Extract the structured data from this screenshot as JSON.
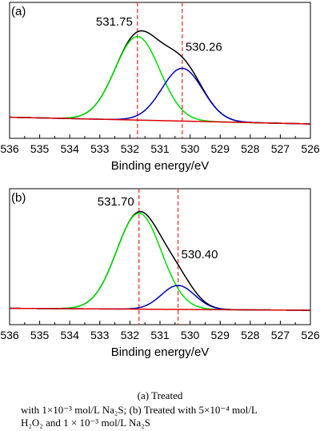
{
  "figure_caption": {
    "title": "(a) Treated",
    "line1": "with 1×10⁻³ mol/L Na₂S; (b) Treated with 5×10⁻⁴ mol/L",
    "line2": "H₂O₂ and 1 × 10⁻³ mol/L Na₂S"
  },
  "colors": {
    "envelope": "#000000",
    "peak_high": "#00dd00",
    "peak_low": "#0000bb",
    "background": "#dd0000",
    "reference_line": "#ee3333"
  },
  "chart_data": [
    {
      "type": "line",
      "panel_label": "(a)",
      "xlabel": "Binding energy/eV",
      "ylabel": "",
      "xlim": [
        536,
        526
      ],
      "x_reversed": true,
      "x_ticks": [
        536,
        535,
        534,
        533,
        532,
        531,
        530,
        529,
        528,
        527,
        526
      ],
      "reference_lines": [
        531.75,
        530.26
      ],
      "annotations": [
        {
          "text": "531.75",
          "x": 531.75
        },
        {
          "text": "530.26",
          "x": 530.26
        }
      ],
      "ylim": [
        0,
        1.1
      ],
      "peak_fit": {
        "baseline_start": 0.07,
        "baseline_end": 0.0,
        "peaks": [
          {
            "center": 531.75,
            "height": 0.87,
            "fwhm": 1.75
          },
          {
            "center": 530.26,
            "height": 0.55,
            "fwhm": 1.6
          }
        ]
      },
      "series": [
        {
          "role": "envelope",
          "color": "#000000"
        },
        {
          "role": "component",
          "peak_index": 0,
          "color": "#00dd00"
        },
        {
          "role": "component",
          "peak_index": 1,
          "color": "#0000bb"
        },
        {
          "role": "background",
          "color": "#dd0000"
        }
      ],
      "grid": false,
      "legend": "none"
    },
    {
      "type": "line",
      "panel_label": "(b)",
      "xlabel": "Binding energy/eV",
      "ylabel": "",
      "xlim": [
        536,
        526
      ],
      "x_reversed": true,
      "x_ticks": [
        536,
        535,
        534,
        533,
        532,
        531,
        530,
        529,
        528,
        527,
        526
      ],
      "reference_lines": [
        531.7,
        530.4
      ],
      "annotations": [
        {
          "text": "531.70",
          "x": 531.7
        },
        {
          "text": "530.40",
          "x": 530.4
        }
      ],
      "ylim": [
        0,
        1.1
      ],
      "peak_fit": {
        "baseline_start": 0.02,
        "baseline_end": 0.0,
        "peaks": [
          {
            "center": 531.7,
            "height": 1.0,
            "fwhm": 1.75
          },
          {
            "center": 530.4,
            "height": 0.25,
            "fwhm": 1.3
          }
        ]
      },
      "series": [
        {
          "role": "envelope",
          "color": "#000000"
        },
        {
          "role": "component",
          "peak_index": 0,
          "color": "#00dd00"
        },
        {
          "role": "component",
          "peak_index": 1,
          "color": "#0000bb"
        },
        {
          "role": "background",
          "color": "#dd0000"
        }
      ],
      "grid": false,
      "legend": "none"
    }
  ]
}
